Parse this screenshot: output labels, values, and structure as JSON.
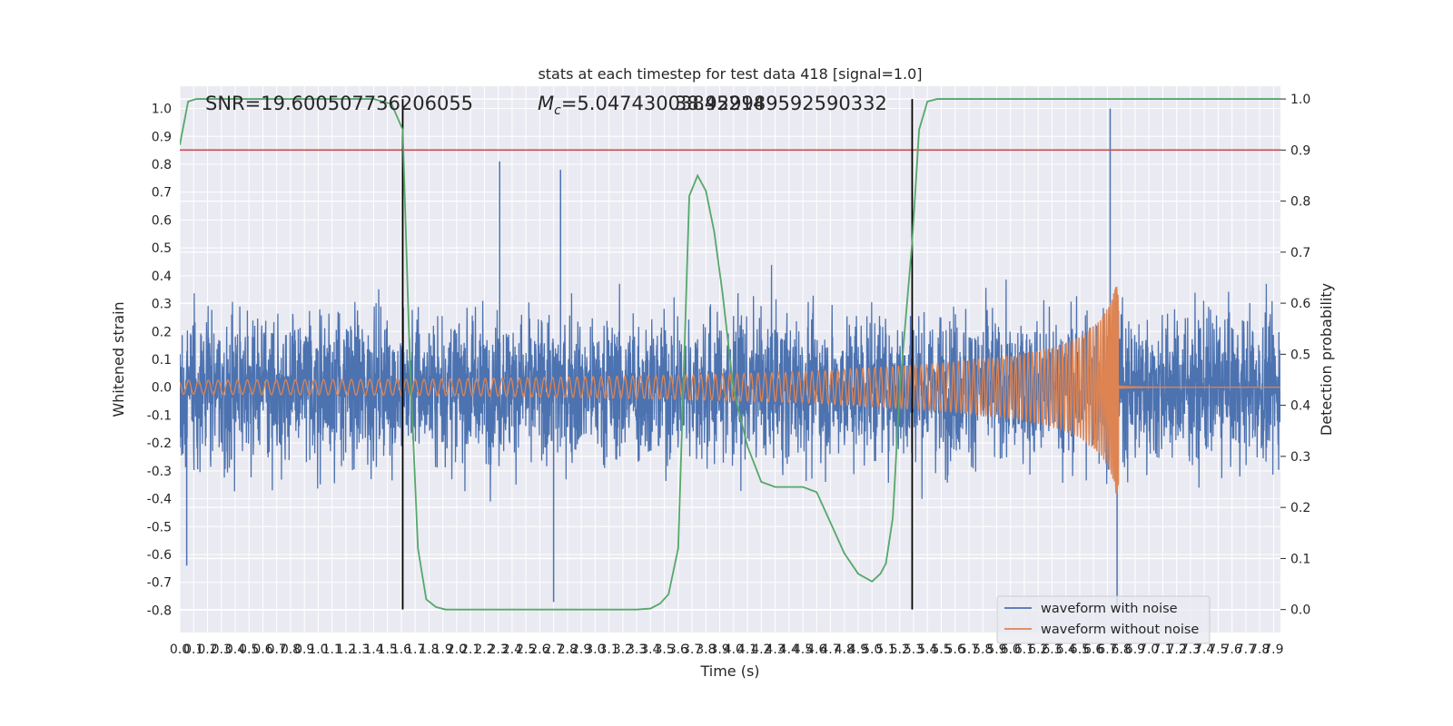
{
  "chart_data": {
    "type": "line",
    "title": "stats at each timestep for test data 418 [signal=1.0]",
    "xlabel": "Time (s)",
    "ylabel_left": "Whitened strain",
    "ylabel_right": "Detection probability",
    "xlim": [
      0.0,
      7.95
    ],
    "ylim_left": [
      -0.88,
      1.08
    ],
    "ylim_right": [
      -0.045,
      1.025
    ],
    "x_ticks": [
      "0.0",
      "0.1",
      "0.2",
      "0.3",
      "0.4",
      "0.5",
      "0.6",
      "0.7",
      "0.8",
      "0.9",
      "1.0",
      "1.1",
      "1.2",
      "1.3",
      "1.4",
      "1.5",
      "1.6",
      "1.7",
      "1.8",
      "1.9",
      "2.0",
      "2.1",
      "2.2",
      "2.3",
      "2.4",
      "2.5",
      "2.6",
      "2.7",
      "2.8",
      "2.9",
      "3.0",
      "3.1",
      "3.2",
      "3.3",
      "3.4",
      "3.5",
      "3.6",
      "3.7",
      "3.8",
      "3.9",
      "4.0",
      "4.1",
      "4.2",
      "4.3",
      "4.4",
      "4.5",
      "4.6",
      "4.7",
      "4.8",
      "4.9",
      "5.0",
      "5.1",
      "5.2",
      "5.3",
      "5.4",
      "5.5",
      "5.6",
      "5.7",
      "5.8",
      "5.9",
      "6.0",
      "6.1",
      "6.2",
      "6.3",
      "6.4",
      "6.5",
      "6.6",
      "6.7",
      "6.8",
      "6.9",
      "7.0",
      "7.1",
      "7.2",
      "7.3",
      "7.4",
      "7.5",
      "7.6",
      "7.7",
      "7.8",
      "7.9"
    ],
    "y_ticks_left": [
      "-0.8",
      "-0.7",
      "-0.6",
      "-0.5",
      "-0.4",
      "-0.3",
      "-0.2",
      "-0.1",
      "0.0",
      "0.1",
      "0.2",
      "0.3",
      "0.4",
      "0.5",
      "0.6",
      "0.7",
      "0.8",
      "0.9",
      "1.0"
    ],
    "y_ticks_right": [
      "0.0",
      "0.1",
      "0.2",
      "0.3",
      "0.4",
      "0.5",
      "0.6",
      "0.7",
      "0.8",
      "0.9",
      "1.0"
    ],
    "annotations": {
      "snr": "SNR=19.600507736206055",
      "mc_symbol": "M",
      "mc_sub": "c",
      "mc_value": "=5.04743003845214",
      "overlap": "38.929989592590332"
    },
    "threshold": {
      "value": 0.9,
      "axis": "right",
      "color": "#c44e52"
    },
    "vlines": [
      1.61,
      5.29
    ],
    "series": [
      {
        "name": "waveform with noise",
        "color": "#4c72b0",
        "axis": "left",
        "kind": "noise",
        "amplitude_envelope": [
          [
            0.0,
            0.33
          ],
          [
            7.95,
            0.33
          ]
        ],
        "peak_spikes": [
          [
            0.05,
            -0.64
          ],
          [
            2.31,
            0.81
          ],
          [
            2.7,
            -0.77
          ],
          [
            2.75,
            0.78
          ],
          [
            6.72,
            1.0
          ],
          [
            6.77,
            -0.79
          ]
        ]
      },
      {
        "name": "waveform without noise",
        "color": "#dd8452",
        "axis": "left",
        "kind": "chirp",
        "envelope": [
          [
            0.0,
            0.025
          ],
          [
            2.0,
            0.03
          ],
          [
            3.5,
            0.042
          ],
          [
            4.5,
            0.055
          ],
          [
            5.5,
            0.085
          ],
          [
            6.0,
            0.11
          ],
          [
            6.3,
            0.14
          ],
          [
            6.5,
            0.18
          ],
          [
            6.65,
            0.24
          ],
          [
            6.72,
            0.3
          ],
          [
            6.76,
            0.36
          ],
          [
            6.78,
            0.36
          ]
        ],
        "merger_time": 6.78,
        "ringdown_amplitude": 0.005
      },
      {
        "name": "detection probability",
        "color": "#55a868",
        "axis": "right",
        "x": [
          0.0,
          0.06,
          0.12,
          0.2,
          1.4,
          1.53,
          1.61,
          1.66,
          1.72,
          1.78,
          1.85,
          1.92,
          2.0,
          2.2,
          3.0,
          3.3,
          3.4,
          3.47,
          3.53,
          3.6,
          3.68,
          3.74,
          3.8,
          3.86,
          3.92,
          4.0,
          4.1,
          4.2,
          4.3,
          4.5,
          4.6,
          4.7,
          4.8,
          4.9,
          5.0,
          5.06,
          5.1,
          5.15,
          5.2,
          5.29,
          5.34,
          5.4,
          5.47,
          5.55,
          6.0,
          7.95
        ],
        "y": [
          0.91,
          0.995,
          1.0,
          1.0,
          1.0,
          0.99,
          0.94,
          0.5,
          0.12,
          0.02,
          0.005,
          0.0,
          0.0,
          0.0,
          0.0,
          0.0,
          0.002,
          0.012,
          0.03,
          0.12,
          0.81,
          0.85,
          0.82,
          0.74,
          0.62,
          0.43,
          0.32,
          0.25,
          0.24,
          0.24,
          0.23,
          0.17,
          0.11,
          0.07,
          0.055,
          0.07,
          0.09,
          0.18,
          0.43,
          0.72,
          0.94,
          0.995,
          1.0,
          1.0,
          1.0,
          1.0
        ]
      }
    ],
    "legend": {
      "placement": "lower-right",
      "entries": [
        "waveform with noise",
        "waveform without noise"
      ]
    },
    "grid": true
  }
}
